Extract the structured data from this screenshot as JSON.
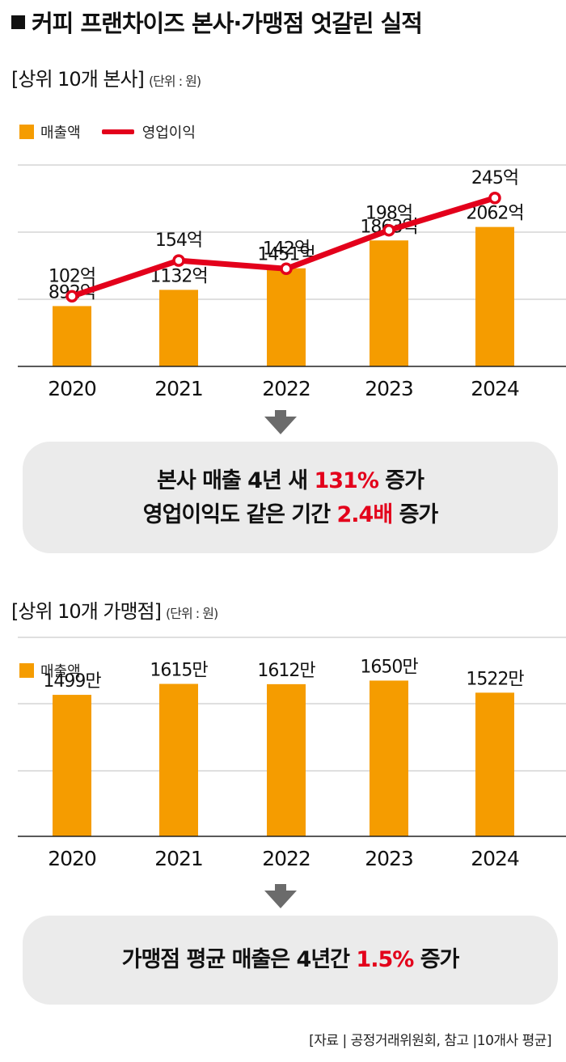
{
  "header": {
    "title": "커피 프랜차이즈 본사·가맹점 엇갈린 실적"
  },
  "sections": [
    {
      "title": "[상위 10개 본사]",
      "unit": "(단위 : 원)",
      "legend_bar": "매출액",
      "legend_line": "영업이익"
    },
    {
      "title": "[상위 10개 가맹점]",
      "unit": "(단위 : 원)",
      "legend_bar": "매출액"
    }
  ],
  "summary1": {
    "l1a": "본사 매출 4년 새 ",
    "l1b": "131%",
    "l1c": " 증가",
    "l2a": "영업이익도 같은 기간 ",
    "l2b": "2.4배",
    "l2c": " 증가"
  },
  "summary2": {
    "l1a": "가맹점 평균 매출은 4년간 ",
    "l1b": "1.5%",
    "l1c": " 증가"
  },
  "source": "[자료 | 공정거래위원회, 참고 |10개사 평균]",
  "colors": {
    "bar": "#f59c00",
    "line": "#e3001b",
    "accent": "#e3001b"
  },
  "chart_data": [
    {
      "type": "bar",
      "categories": [
        "2020",
        "2021",
        "2022",
        "2023",
        "2024"
      ],
      "series": [
        {
          "name": "매출액",
          "type": "bar",
          "values": [
            892,
            1132,
            1451,
            1863,
            2062
          ],
          "labels": [
            "892억",
            "1132억",
            "1451억",
            "1863억",
            "2062억"
          ]
        },
        {
          "name": "영업이익",
          "type": "line",
          "values": [
            102,
            154,
            142,
            198,
            245
          ],
          "labels": [
            "102억",
            "154억",
            "142억",
            "198억",
            "245억"
          ]
        }
      ],
      "title": "[상위 10개 본사]",
      "ylabel": "(단위 : 원)",
      "grid": true,
      "legend": "top-left"
    },
    {
      "type": "bar",
      "categories": [
        "2020",
        "2021",
        "2022",
        "2023",
        "2024"
      ],
      "series": [
        {
          "name": "매출액",
          "type": "bar",
          "values": [
            1499,
            1615,
            1612,
            1650,
            1522
          ],
          "labels": [
            "1499만",
            "1615만",
            "1612만",
            "1650만",
            "1522만"
          ]
        }
      ],
      "title": "[상위 10개 가맹점]",
      "ylabel": "(단위 : 원)",
      "grid": true,
      "legend": "top-left"
    }
  ]
}
